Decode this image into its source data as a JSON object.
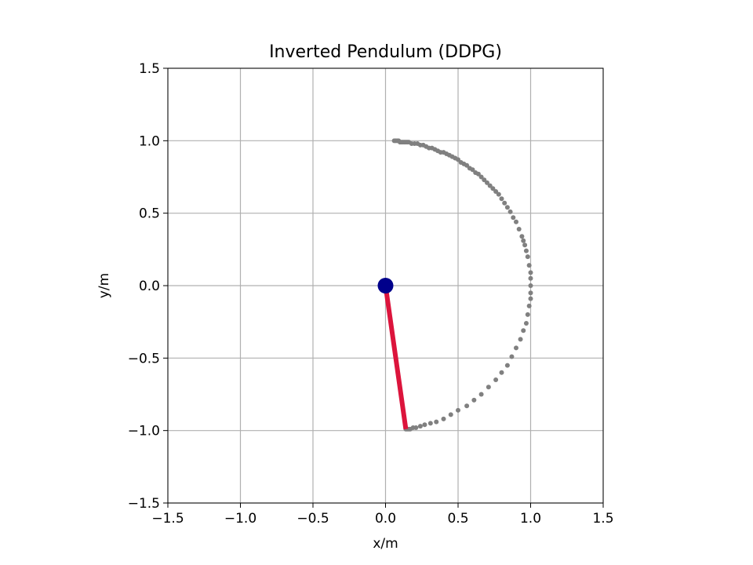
{
  "chart_data": {
    "type": "scatter",
    "title": "Inverted Pendulum (DDPG)",
    "xlabel": "x/m",
    "ylabel": "y/m",
    "xlim": [
      -1.5,
      1.5
    ],
    "ylim": [
      -1.5,
      1.5
    ],
    "grid": true,
    "aspect": "equal",
    "xticks": [
      -1.5,
      -1.0,
      -0.5,
      0.0,
      0.5,
      1.0,
      1.5
    ],
    "yticks": [
      -1.5,
      -1.0,
      -0.5,
      0.0,
      0.5,
      1.0,
      1.5
    ],
    "xtick_labels": [
      "−1.5",
      "−1.0",
      "−0.5",
      "0.0",
      "0.5",
      "1.0",
      "1.5"
    ],
    "ytick_labels": [
      "−1.5",
      "−1.0",
      "−0.5",
      "0.0",
      "0.5",
      "1.0",
      "1.5"
    ],
    "pivot": {
      "x": 0.0,
      "y": 0.0,
      "color": "#00008b"
    },
    "rod": {
      "x": [
        0.0,
        0.14
      ],
      "y": [
        0.0,
        -0.99
      ],
      "color": "#dc143c"
    },
    "trajectory": {
      "color": "#808080",
      "x": [
        0.06,
        0.07,
        0.08,
        0.09,
        0.1,
        0.11,
        0.12,
        0.13,
        0.14,
        0.15,
        0.16,
        0.18,
        0.2,
        0.22,
        0.24,
        0.26,
        0.28,
        0.3,
        0.32,
        0.34,
        0.36,
        0.38,
        0.4,
        0.42,
        0.44,
        0.46,
        0.48,
        0.5,
        0.52,
        0.54,
        0.56,
        0.58,
        0.6,
        0.62,
        0.64,
        0.66,
        0.68,
        0.7,
        0.72,
        0.74,
        0.76,
        0.78,
        0.8,
        0.82,
        0.84,
        0.86,
        0.88,
        0.9,
        0.92,
        0.94,
        0.95,
        0.96,
        0.97,
        0.98,
        0.99,
        1.0,
        1.0,
        1.0,
        1.0,
        1.0,
        0.99,
        0.98,
        0.97,
        0.95,
        0.93,
        0.9,
        0.87,
        0.84,
        0.8,
        0.76,
        0.71,
        0.66,
        0.61,
        0.56,
        0.5,
        0.45,
        0.4,
        0.35,
        0.31,
        0.27,
        0.24,
        0.21,
        0.19,
        0.17,
        0.16,
        0.15,
        0.14
      ],
      "y": [
        1.0,
        1.0,
        1.0,
        1.0,
        0.99,
        0.99,
        0.99,
        0.99,
        0.99,
        0.99,
        0.99,
        0.98,
        0.98,
        0.98,
        0.97,
        0.97,
        0.96,
        0.95,
        0.95,
        0.94,
        0.93,
        0.92,
        0.92,
        0.91,
        0.9,
        0.89,
        0.88,
        0.87,
        0.85,
        0.84,
        0.83,
        0.81,
        0.8,
        0.78,
        0.77,
        0.75,
        0.73,
        0.71,
        0.69,
        0.67,
        0.65,
        0.63,
        0.6,
        0.57,
        0.54,
        0.51,
        0.47,
        0.44,
        0.39,
        0.34,
        0.31,
        0.28,
        0.24,
        0.2,
        0.14,
        0.09,
        0.05,
        0.0,
        -0.05,
        -0.09,
        -0.14,
        -0.2,
        -0.26,
        -0.31,
        -0.37,
        -0.43,
        -0.49,
        -0.55,
        -0.6,
        -0.65,
        -0.7,
        -0.75,
        -0.79,
        -0.83,
        -0.86,
        -0.89,
        -0.92,
        -0.94,
        -0.95,
        -0.96,
        -0.97,
        -0.98,
        -0.98,
        -0.99,
        -0.99,
        -0.99,
        -0.99
      ]
    }
  }
}
